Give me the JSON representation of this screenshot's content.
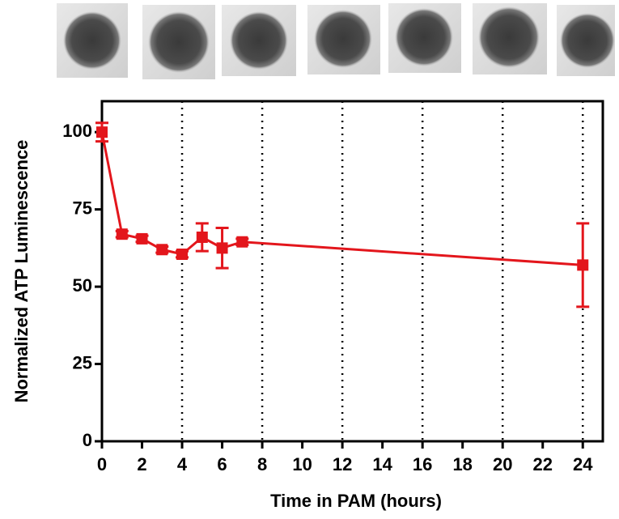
{
  "chart_data": {
    "type": "line",
    "xlabel": "Time in PAM (hours)",
    "ylabel": "Normalized ATP Luminescence",
    "x": [
      0,
      1,
      2,
      3,
      4,
      5,
      6,
      7,
      24
    ],
    "values": [
      100,
      67,
      65.5,
      62,
      60.5,
      66,
      62.5,
      64.5,
      57
    ],
    "errors": [
      3,
      1,
      1,
      1,
      1,
      4.5,
      6.5,
      1,
      13.5
    ],
    "color": "#e3161c",
    "xlim": [
      0,
      25
    ],
    "ylim": [
      0,
      110
    ],
    "xticks": [
      0,
      2,
      4,
      6,
      8,
      10,
      12,
      14,
      16,
      18,
      20,
      22,
      24
    ],
    "yticks": [
      0,
      25,
      50,
      75,
      100
    ],
    "vlines": [
      4,
      8,
      12,
      16,
      20,
      24
    ]
  }
}
